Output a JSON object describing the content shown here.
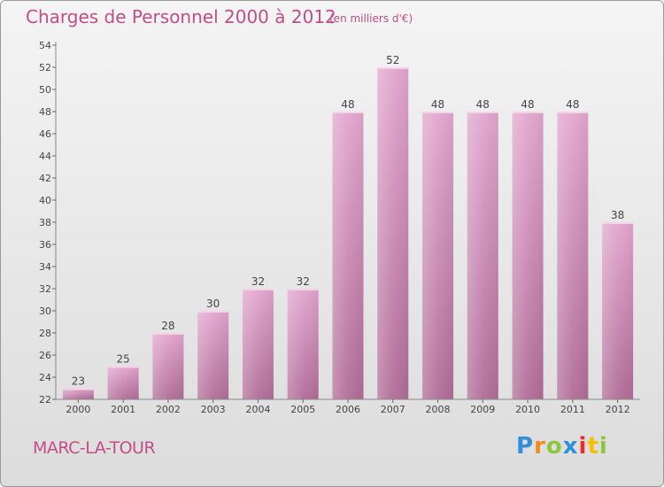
{
  "header": {
    "title": "Charges de Personnel 2000 à 2012",
    "subtitle": "(en milliers d'€)"
  },
  "footer": {
    "place": "MARC-LA-TOUR",
    "logo": "Proxiti"
  },
  "colors": {
    "title": "#c24d87",
    "bar_top": "#e3a6cf",
    "bar_bottom": "#b16d98",
    "axis": "#888888",
    "grid_tick": "#666666"
  },
  "chart_data": {
    "type": "bar",
    "title": "Charges de Personnel 2000 à 2012",
    "subtitle": "(en milliers d'€)",
    "xlabel": "",
    "ylabel": "",
    "categories": [
      "2000",
      "2001",
      "2002",
      "2003",
      "2004",
      "2005",
      "2006",
      "2007",
      "2008",
      "2009",
      "2010",
      "2011",
      "2012"
    ],
    "values": [
      23,
      25,
      28,
      30,
      32,
      32,
      48,
      52,
      48,
      48,
      48,
      48,
      38
    ],
    "data_labels": [
      "23",
      "25",
      "28",
      "30",
      "32",
      "32",
      "48",
      "52",
      "48",
      "48",
      "48",
      "48",
      "38"
    ],
    "ylim": [
      22,
      54
    ],
    "yticks": [
      22,
      24,
      26,
      28,
      30,
      32,
      34,
      36,
      38,
      40,
      42,
      44,
      46,
      48,
      50,
      52,
      54
    ],
    "grid": false,
    "legend": "none"
  }
}
